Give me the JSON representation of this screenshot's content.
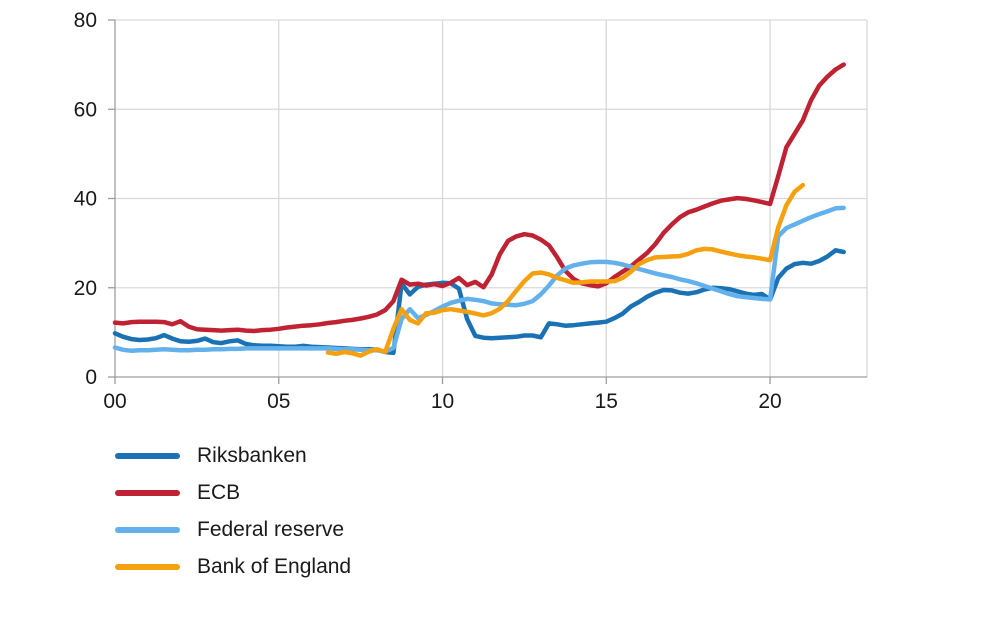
{
  "chart_data": {
    "type": "line",
    "title": "",
    "xlabel": "",
    "ylabel": "",
    "ylim": [
      0,
      80
    ],
    "xlim": [
      2000,
      2022.96
    ],
    "grid": true,
    "legend_position": "bottom-left",
    "y_ticks": [
      {
        "label": "0",
        "value": 0
      },
      {
        "label": "20",
        "value": 20
      },
      {
        "label": "40",
        "value": 40
      },
      {
        "label": "60",
        "value": 60
      },
      {
        "label": "80",
        "value": 80
      }
    ],
    "x_ticks": [
      {
        "label": "00",
        "value": 2000
      },
      {
        "label": "05",
        "value": 2005
      },
      {
        "label": "10",
        "value": 2010
      },
      {
        "label": "15",
        "value": 2015
      },
      {
        "label": "20",
        "value": 2020
      }
    ],
    "colors": {
      "gridline": "#d9d9d9",
      "axis": "#9d9d9d",
      "text": "#1a1a1a"
    },
    "series": [
      {
        "name": "Riksbanken",
        "color": "#1a72b5",
        "x": [
          2000.0,
          2000.25,
          2000.5,
          2000.75,
          2001.0,
          2001.25,
          2001.5,
          2001.75,
          2002.0,
          2002.25,
          2002.5,
          2002.75,
          2003.0,
          2003.25,
          2003.5,
          2003.75,
          2004.0,
          2004.25,
          2004.5,
          2004.75,
          2005.0,
          2005.25,
          2005.5,
          2005.75,
          2006.0,
          2006.25,
          2006.5,
          2006.75,
          2007.0,
          2007.25,
          2007.5,
          2007.75,
          2008.0,
          2008.25,
          2008.5,
          2008.75,
          2009.0,
          2009.25,
          2009.5,
          2009.75,
          2010.0,
          2010.25,
          2010.5,
          2010.75,
          2011.0,
          2011.25,
          2011.5,
          2011.75,
          2012.0,
          2012.25,
          2012.5,
          2012.75,
          2013.0,
          2013.25,
          2013.5,
          2013.75,
          2014.0,
          2014.25,
          2014.5,
          2014.75,
          2015.0,
          2015.25,
          2015.5,
          2015.75,
          2016.0,
          2016.25,
          2016.5,
          2016.75,
          2017.0,
          2017.25,
          2017.5,
          2017.75,
          2018.0,
          2018.25,
          2018.5,
          2018.75,
          2019.0,
          2019.25,
          2019.5,
          2019.75,
          2020.0,
          2020.25,
          2020.5,
          2020.75,
          2021.0,
          2021.25,
          2021.5,
          2021.75,
          2022.0,
          2022.25
        ],
        "values": [
          9.8,
          9.0,
          8.5,
          8.3,
          8.4,
          8.7,
          9.4,
          8.6,
          8.0,
          7.9,
          8.1,
          8.6,
          7.8,
          7.6,
          8.0,
          8.2,
          7.4,
          7.1,
          7.0,
          7.0,
          6.9,
          6.8,
          6.8,
          7.0,
          6.8,
          6.7,
          6.6,
          6.5,
          6.4,
          6.3,
          6.2,
          6.2,
          6.1,
          5.6,
          5.4,
          21.0,
          18.5,
          20.2,
          20.7,
          20.9,
          21.1,
          21.0,
          19.8,
          13.0,
          9.2,
          8.8,
          8.7,
          8.8,
          8.9,
          9.0,
          9.3,
          9.3,
          8.9,
          12.0,
          11.8,
          11.5,
          11.6,
          11.8,
          12.0,
          12.2,
          12.4,
          13.2,
          14.2,
          15.8,
          16.8,
          18.0,
          18.9,
          19.5,
          19.4,
          18.9,
          18.7,
          19.0,
          19.6,
          20.0,
          19.9,
          19.7,
          19.2,
          18.7,
          18.4,
          18.6,
          17.4,
          22.2,
          24.3,
          25.3,
          25.6,
          25.4,
          26.0,
          27.0,
          28.4,
          28.0
        ]
      },
      {
        "name": "ECB",
        "color": "#bf2232",
        "x": [
          2000.0,
          2000.25,
          2000.5,
          2000.75,
          2001.0,
          2001.25,
          2001.5,
          2001.75,
          2002.0,
          2002.25,
          2002.5,
          2002.75,
          2003.0,
          2003.25,
          2003.5,
          2003.75,
          2004.0,
          2004.25,
          2004.5,
          2004.75,
          2005.0,
          2005.25,
          2005.5,
          2005.75,
          2006.0,
          2006.25,
          2006.5,
          2006.75,
          2007.0,
          2007.25,
          2007.5,
          2007.75,
          2008.0,
          2008.25,
          2008.5,
          2008.75,
          2009.0,
          2009.25,
          2009.5,
          2009.75,
          2010.0,
          2010.25,
          2010.5,
          2010.75,
          2011.0,
          2011.25,
          2011.5,
          2011.75,
          2012.0,
          2012.25,
          2012.5,
          2012.75,
          2013.0,
          2013.25,
          2013.5,
          2013.75,
          2014.0,
          2014.25,
          2014.5,
          2014.75,
          2015.0,
          2015.25,
          2015.5,
          2015.75,
          2016.0,
          2016.25,
          2016.5,
          2016.75,
          2017.0,
          2017.25,
          2017.5,
          2017.75,
          2018.0,
          2018.25,
          2018.5,
          2018.75,
          2019.0,
          2019.25,
          2019.5,
          2019.75,
          2020.0,
          2020.25,
          2020.5,
          2020.75,
          2021.0,
          2021.25,
          2021.5,
          2021.75,
          2022.0,
          2022.25
        ],
        "values": [
          12.2,
          12.0,
          12.3,
          12.4,
          12.4,
          12.4,
          12.3,
          11.8,
          12.5,
          11.3,
          10.7,
          10.6,
          10.5,
          10.4,
          10.5,
          10.6,
          10.4,
          10.3,
          10.5,
          10.6,
          10.8,
          11.1,
          11.3,
          11.5,
          11.6,
          11.8,
          12.1,
          12.3,
          12.6,
          12.8,
          13.1,
          13.5,
          14.0,
          15.0,
          17.0,
          21.8,
          20.7,
          20.9,
          20.5,
          20.8,
          20.4,
          21.1,
          22.2,
          20.6,
          21.3,
          20.1,
          23.0,
          27.5,
          30.5,
          31.5,
          32.0,
          31.7,
          30.8,
          29.5,
          26.8,
          23.8,
          22.0,
          21.0,
          20.6,
          20.3,
          21.0,
          22.4,
          23.6,
          24.8,
          26.3,
          27.8,
          29.8,
          32.3,
          34.2,
          35.8,
          36.9,
          37.5,
          38.2,
          38.9,
          39.5,
          39.8,
          40.1,
          39.9,
          39.6,
          39.2,
          38.8,
          45.0,
          51.5,
          54.5,
          57.5,
          62.0,
          65.3,
          67.3,
          68.9,
          70.0
        ]
      },
      {
        "name": "Federal reserve",
        "color": "#63b1ec",
        "x": [
          2000.0,
          2000.25,
          2000.5,
          2000.75,
          2001.0,
          2001.25,
          2001.5,
          2001.75,
          2002.0,
          2002.25,
          2002.5,
          2002.75,
          2003.0,
          2003.25,
          2003.5,
          2003.75,
          2004.0,
          2004.25,
          2004.5,
          2004.75,
          2005.0,
          2005.25,
          2005.5,
          2005.75,
          2006.0,
          2006.25,
          2006.5,
          2006.75,
          2007.0,
          2007.25,
          2007.5,
          2007.75,
          2008.0,
          2008.25,
          2008.5,
          2008.75,
          2009.0,
          2009.25,
          2009.5,
          2009.75,
          2010.0,
          2010.25,
          2010.5,
          2010.75,
          2011.0,
          2011.25,
          2011.5,
          2011.75,
          2012.0,
          2012.25,
          2012.5,
          2012.75,
          2013.0,
          2013.25,
          2013.5,
          2013.75,
          2014.0,
          2014.25,
          2014.5,
          2014.75,
          2015.0,
          2015.25,
          2015.5,
          2015.75,
          2016.0,
          2016.25,
          2016.5,
          2016.75,
          2017.0,
          2017.25,
          2017.5,
          2017.75,
          2018.0,
          2018.25,
          2018.5,
          2018.75,
          2019.0,
          2019.25,
          2019.5,
          2019.75,
          2020.0,
          2020.25,
          2020.5,
          2020.75,
          2021.0,
          2021.25,
          2021.5,
          2021.75,
          2022.0,
          2022.25
        ],
        "values": [
          6.6,
          6.1,
          5.9,
          6.0,
          6.0,
          6.1,
          6.2,
          6.1,
          6.0,
          6.0,
          6.1,
          6.1,
          6.2,
          6.2,
          6.3,
          6.3,
          6.4,
          6.4,
          6.4,
          6.4,
          6.4,
          6.4,
          6.4,
          6.4,
          6.4,
          6.4,
          6.4,
          6.3,
          6.2,
          6.2,
          6.1,
          6.0,
          6.0,
          5.7,
          6.5,
          13.0,
          15.2,
          13.2,
          13.9,
          14.8,
          15.8,
          16.6,
          17.1,
          17.5,
          17.3,
          17.0,
          16.5,
          16.3,
          16.2,
          16.1,
          16.4,
          17.0,
          18.5,
          20.5,
          22.8,
          24.3,
          25.0,
          25.4,
          25.7,
          25.8,
          25.8,
          25.6,
          25.2,
          24.7,
          24.2,
          23.7,
          23.2,
          22.8,
          22.4,
          21.9,
          21.5,
          21.0,
          20.4,
          19.8,
          19.2,
          18.6,
          18.1,
          17.9,
          17.7,
          17.5,
          17.4,
          31.5,
          33.4,
          34.2,
          35.0,
          35.8,
          36.5,
          37.1,
          37.8,
          37.9
        ]
      },
      {
        "name": "Bank of England",
        "color": "#f5a00f",
        "x": [
          2006.5,
          2006.75,
          2007.0,
          2007.25,
          2007.5,
          2007.75,
          2008.0,
          2008.25,
          2008.5,
          2008.75,
          2009.0,
          2009.25,
          2009.5,
          2009.75,
          2010.0,
          2010.25,
          2010.5,
          2010.75,
          2011.0,
          2011.25,
          2011.5,
          2011.75,
          2012.0,
          2012.25,
          2012.5,
          2012.75,
          2013.0,
          2013.25,
          2013.5,
          2013.75,
          2014.0,
          2014.25,
          2014.5,
          2014.75,
          2015.0,
          2015.25,
          2015.5,
          2015.75,
          2016.0,
          2016.25,
          2016.5,
          2016.75,
          2017.0,
          2017.25,
          2017.5,
          2017.75,
          2018.0,
          2018.25,
          2018.5,
          2018.75,
          2019.0,
          2019.25,
          2019.5,
          2019.75,
          2020.0,
          2020.25,
          2020.5,
          2020.75,
          2021.0
        ],
        "values": [
          5.5,
          5.2,
          5.6,
          5.3,
          4.8,
          5.7,
          6.2,
          5.6,
          10.8,
          15.2,
          12.8,
          12.0,
          14.3,
          14.4,
          15.0,
          15.2,
          14.9,
          14.6,
          14.2,
          13.8,
          14.3,
          15.3,
          17.0,
          19.3,
          21.5,
          23.2,
          23.4,
          23.0,
          22.2,
          21.7,
          21.1,
          21.2,
          21.4,
          21.4,
          21.4,
          21.5,
          22.2,
          23.6,
          25.3,
          26.2,
          26.8,
          26.9,
          27.0,
          27.1,
          27.6,
          28.4,
          28.7,
          28.6,
          28.1,
          27.7,
          27.3,
          27.0,
          26.8,
          26.5,
          26.2,
          33.5,
          38.5,
          41.5,
          43.0
        ]
      }
    ]
  }
}
